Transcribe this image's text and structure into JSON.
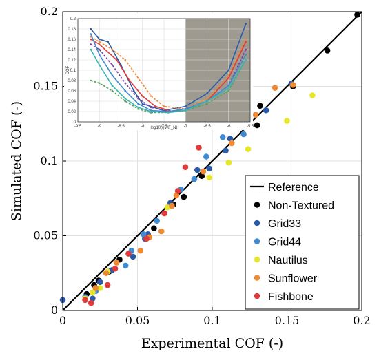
{
  "chart_data": [
    {
      "type": "scatter",
      "title": "",
      "xlabel": "Experimental COF (-)",
      "ylabel": "Simulated COF (-)",
      "xlim": [
        0,
        0.2
      ],
      "ylim": [
        0,
        0.2
      ],
      "x_ticks": [
        "0",
        "0.05",
        "0.1",
        "0.15",
        "0.2"
      ],
      "y_ticks": [
        "0",
        "0.05",
        "0.1",
        "0.15",
        "0.2"
      ],
      "grid": true,
      "legend_position": "bottom-right",
      "reference_line": {
        "name": "Reference",
        "color": "#000000",
        "x": [
          0,
          0.2
        ],
        "y": [
          0,
          0.2
        ]
      },
      "series": [
        {
          "name": "Non-Textured",
          "color": "#000000",
          "points": [
            [
              0.016,
              0.011
            ],
            [
              0.021,
              0.017
            ],
            [
              0.024,
              0.02
            ],
            [
              0.031,
              0.026
            ],
            [
              0.038,
              0.034
            ],
            [
              0.061,
              0.055
            ],
            [
              0.074,
              0.071
            ],
            [
              0.081,
              0.076
            ],
            [
              0.093,
              0.09
            ],
            [
              0.13,
              0.124
            ],
            [
              0.132,
              0.137
            ],
            [
              0.154,
              0.15
            ],
            [
              0.177,
              0.174
            ],
            [
              0.197,
              0.198
            ]
          ]
        },
        {
          "name": "Grid33",
          "color": "#2a5aa8",
          "points": [
            [
              0.0,
              0.007
            ],
            [
              0.02,
              0.008
            ],
            [
              0.025,
              0.019
            ],
            [
              0.033,
              0.027
            ],
            [
              0.047,
              0.036
            ],
            [
              0.055,
              0.048
            ],
            [
              0.057,
              0.051
            ],
            [
              0.072,
              0.072
            ],
            [
              0.09,
              0.094
            ],
            [
              0.098,
              0.095
            ],
            [
              0.109,
              0.107
            ],
            [
              0.112,
              0.115
            ],
            [
              0.136,
              0.134
            ],
            [
              0.153,
              0.152
            ]
          ]
        },
        {
          "name": "Grid44",
          "color": "#3f8ad0",
          "points": [
            [
              0.015,
              0.009
            ],
            [
              0.022,
              0.013
            ],
            [
              0.042,
              0.03
            ],
            [
              0.046,
              0.04
            ],
            [
              0.054,
              0.051
            ],
            [
              0.063,
              0.06
            ],
            [
              0.079,
              0.081
            ],
            [
              0.088,
              0.088
            ],
            [
              0.096,
              0.103
            ],
            [
              0.107,
              0.116
            ],
            [
              0.121,
              0.118
            ]
          ]
        },
        {
          "name": "Nautilus",
          "color": "#e6e62a",
          "points": [
            [
              0.015,
              0.008
            ],
            [
              0.02,
              0.012
            ],
            [
              0.025,
              0.015
            ],
            [
              0.03,
              0.026
            ],
            [
              0.07,
              0.069
            ],
            [
              0.098,
              0.089
            ],
            [
              0.111,
              0.099
            ],
            [
              0.124,
              0.108
            ],
            [
              0.15,
              0.127
            ],
            [
              0.167,
              0.144
            ]
          ]
        },
        {
          "name": "Sunflower",
          "color": "#ef8a34",
          "points": [
            [
              0.022,
              0.015
            ],
            [
              0.029,
              0.025
            ],
            [
              0.036,
              0.032
            ],
            [
              0.052,
              0.04
            ],
            [
              0.058,
              0.049
            ],
            [
              0.066,
              0.053
            ],
            [
              0.073,
              0.07
            ],
            [
              0.076,
              0.077
            ],
            [
              0.094,
              0.093
            ],
            [
              0.113,
              0.112
            ],
            [
              0.129,
              0.131
            ],
            [
              0.142,
              0.149
            ],
            [
              0.154,
              0.151
            ]
          ]
        },
        {
          "name": "Fishbone",
          "color": "#e03a3a",
          "points": [
            [
              0.015,
              0.007
            ],
            [
              0.019,
              0.005
            ],
            [
              0.03,
              0.017
            ],
            [
              0.035,
              0.028
            ],
            [
              0.044,
              0.038
            ],
            [
              0.056,
              0.048
            ],
            [
              0.068,
              0.065
            ],
            [
              0.077,
              0.08
            ],
            [
              0.082,
              0.096
            ],
            [
              0.091,
              0.109
            ]
          ]
        }
      ]
    },
    {
      "type": "line",
      "title": "",
      "xlabel": "log10(ηV/F_N)",
      "ylabel": "COF",
      "xlim": [
        -9.5,
        -5.5
      ],
      "ylim": [
        0,
        0.2
      ],
      "x_ticks": [
        "-9.5",
        "-9",
        "-8.5",
        "-8",
        "-7.5",
        "-7",
        "-6.5",
        "-6",
        "-5.5"
      ],
      "y_ticks": [
        "0",
        "0.02",
        "0.04",
        "0.06",
        "0.08",
        "0.1",
        "0.12",
        "0.14",
        "0.16",
        "0.18",
        "0.2"
      ],
      "shaded_region": {
        "x_from": -7,
        "x_to": -5.5,
        "color": "#9e9a90"
      },
      "series": [
        {
          "color": "#2a5aa8",
          "x": [
            -9.2,
            -9.0,
            -8.8,
            -8.5,
            -8.2,
            -8.0,
            -7.5,
            -7.0,
            -6.5,
            -6.0,
            -5.6
          ],
          "y": [
            0.18,
            0.16,
            0.155,
            0.11,
            0.06,
            0.035,
            0.022,
            0.03,
            0.055,
            0.1,
            0.19
          ]
        },
        {
          "color": "#ef8a34",
          "x": [
            -9.2,
            -9.0,
            -8.7,
            -8.4,
            -8.1,
            -7.8,
            -7.5,
            -7.0,
            -6.5,
            -6.0,
            -5.6
          ],
          "y": [
            0.165,
            0.155,
            0.14,
            0.12,
            0.085,
            0.05,
            0.03,
            0.025,
            0.045,
            0.09,
            0.16
          ]
        },
        {
          "color": "#e03a3a",
          "x": [
            -9.2,
            -9.0,
            -8.6,
            -8.3,
            -8.0,
            -7.7,
            -7.3,
            -7.0,
            -6.5,
            -6.0,
            -5.6
          ],
          "y": [
            0.16,
            0.15,
            0.12,
            0.08,
            0.05,
            0.03,
            0.02,
            0.022,
            0.04,
            0.085,
            0.155
          ]
        },
        {
          "color": "#7a3fa0",
          "x": [
            -9.2,
            -9.0,
            -8.7,
            -8.4,
            -8.1,
            -7.8,
            -7.4,
            -7.0,
            -6.5,
            -6.0,
            -5.6
          ],
          "y": [
            0.15,
            0.14,
            0.11,
            0.075,
            0.045,
            0.028,
            0.02,
            0.025,
            0.04,
            0.07,
            0.14
          ]
        },
        {
          "color": "#3f8ad0",
          "x": [
            -9.2,
            -9.0,
            -8.7,
            -8.4,
            -8.1,
            -7.8,
            -7.4,
            -7.0,
            -6.5,
            -6.0,
            -5.6
          ],
          "y": [
            0.17,
            0.13,
            0.09,
            0.06,
            0.035,
            0.022,
            0.02,
            0.025,
            0.04,
            0.07,
            0.13
          ]
        },
        {
          "color": "#5aa05a",
          "x": [
            -9.2,
            -9.0,
            -8.7,
            -8.4,
            -8.1,
            -7.8,
            -7.4,
            -7.0,
            -6.5,
            -6.0,
            -5.6
          ],
          "y": [
            0.08,
            0.075,
            0.06,
            0.04,
            0.025,
            0.018,
            0.018,
            0.022,
            0.035,
            0.06,
            0.12
          ]
        },
        {
          "color": "#36b7b0",
          "x": [
            -9.2,
            -9.0,
            -8.7,
            -8.4,
            -8.1,
            -7.8,
            -7.4,
            -7.0,
            -6.5,
            -6.0,
            -5.6
          ],
          "y": [
            0.14,
            0.11,
            0.07,
            0.045,
            0.028,
            0.02,
            0.018,
            0.022,
            0.04,
            0.065,
            0.12
          ]
        }
      ]
    }
  ]
}
